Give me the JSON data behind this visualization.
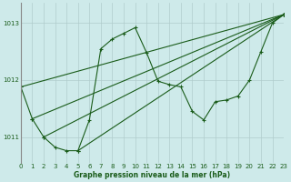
{
  "title": "Graphe pression niveau de la mer (hPa)",
  "bg_color": "#ceeaea",
  "grid_color": "#b0cccc",
  "line_color": "#1a5c1a",
  "xlim": [
    0,
    23
  ],
  "ylim": [
    1010.55,
    1013.35
  ],
  "yticks": [
    1011,
    1012,
    1013
  ],
  "xticks": [
    0,
    1,
    2,
    3,
    4,
    5,
    6,
    7,
    8,
    9,
    10,
    11,
    12,
    13,
    14,
    15,
    16,
    17,
    18,
    19,
    20,
    21,
    22,
    23
  ],
  "series_main": [
    [
      0,
      1011.88
    ],
    [
      1,
      1011.32
    ],
    [
      2,
      1011.0
    ],
    [
      3,
      1010.82
    ],
    [
      4,
      1010.76
    ],
    [
      5,
      1010.76
    ],
    [
      6,
      1011.3
    ],
    [
      7,
      1012.55
    ],
    [
      8,
      1012.72
    ],
    [
      9,
      1012.82
    ],
    [
      10,
      1012.92
    ],
    [
      11,
      1012.48
    ],
    [
      12,
      1011.98
    ],
    [
      13,
      1011.92
    ],
    [
      14,
      1011.88
    ],
    [
      15,
      1011.45
    ],
    [
      16,
      1011.3
    ],
    [
      17,
      1011.62
    ],
    [
      18,
      1011.65
    ],
    [
      19,
      1011.72
    ],
    [
      20,
      1012.0
    ],
    [
      21,
      1012.5
    ],
    [
      22,
      1013.0
    ],
    [
      23,
      1013.15
    ]
  ],
  "series_line2": [
    [
      0,
      1011.88
    ],
    [
      23,
      1013.15
    ]
  ],
  "series_line3": [
    [
      1,
      1011.32
    ],
    [
      23,
      1013.15
    ]
  ],
  "series_line4": [
    [
      2,
      1011.0
    ],
    [
      23,
      1013.15
    ]
  ],
  "series_line5": [
    [
      5,
      1010.76
    ],
    [
      23,
      1013.15
    ]
  ]
}
